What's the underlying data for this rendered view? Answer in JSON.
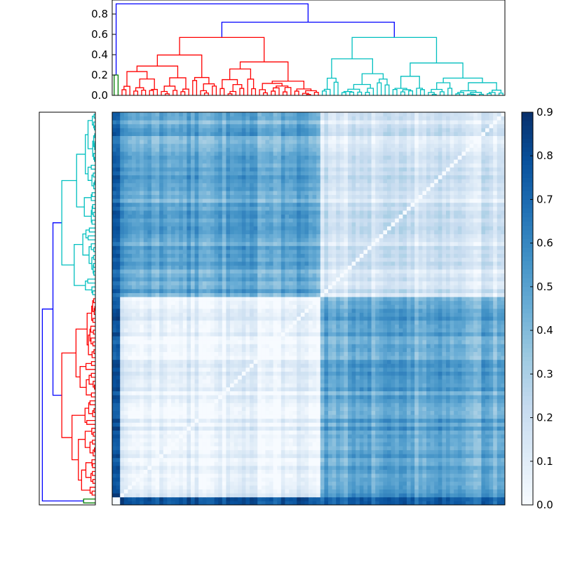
{
  "chart_data": {
    "type": "heatmap",
    "description_kind": "clustered distance matrix with row and column dendrograms",
    "title": "",
    "colormap": "Blues",
    "color_range": [
      0.0,
      0.9
    ],
    "colorbar_ticks": [
      "0.0",
      "0.1",
      "0.2",
      "0.3",
      "0.4",
      "0.5",
      "0.6",
      "0.7",
      "0.8",
      "0.9"
    ],
    "dendrogram_ylim": [
      0.0,
      0.94
    ],
    "dendrogram_ticks": [
      "0.0",
      "0.2",
      "0.4",
      "0.6",
      "0.8"
    ],
    "leaf_order_columns": "left-to-right",
    "leaf_order_rows": "bottom-to-top",
    "clusters": [
      {
        "name": "green",
        "color": "#008000",
        "size": 2,
        "merge_height": 0.2
      },
      {
        "name": "red",
        "color": "#ff0000",
        "size": 51,
        "merge_height": 0.57
      },
      {
        "name": "cyan",
        "color": "#00bfbf",
        "size": 47,
        "merge_height": 0.57
      }
    ],
    "upper_links": [
      {
        "join": [
          "red",
          "cyan"
        ],
        "height": 0.72,
        "color": "#0000ff"
      },
      {
        "join": [
          "green",
          "red+cyan"
        ],
        "height": 0.9,
        "color": "#0000ff"
      }
    ],
    "block_mean_values": {
      "clusters": [
        "green",
        "red",
        "cyan"
      ],
      "values": [
        [
          0.1,
          0.85,
          0.8
        ],
        [
          0.85,
          0.07,
          0.47
        ],
        [
          0.8,
          0.47,
          0.15
        ]
      ]
    },
    "diagonal_value": 0.0
  }
}
